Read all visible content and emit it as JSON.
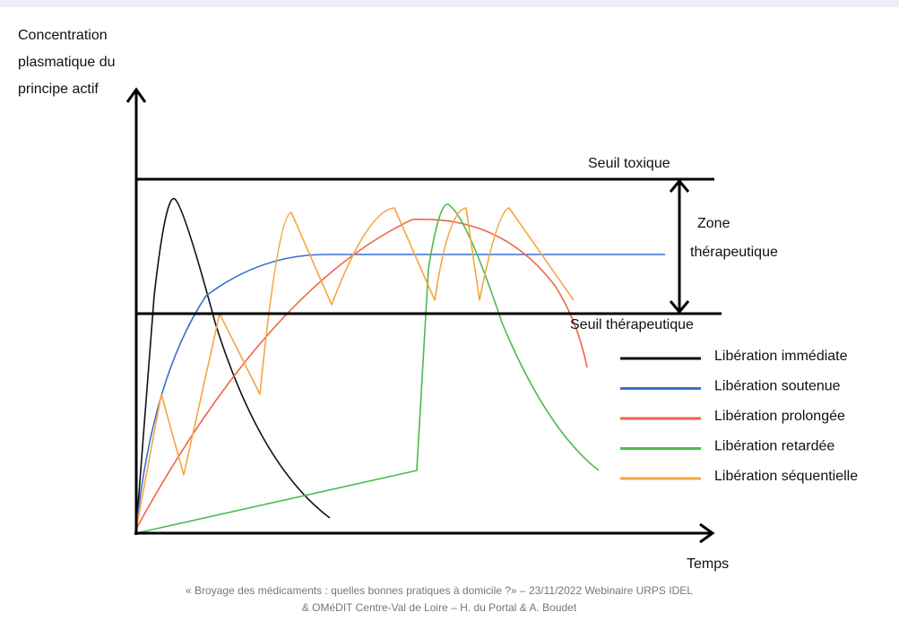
{
  "y_axis_label": [
    "Concentration",
    "plasmatique du",
    "principe actif"
  ],
  "x_axis_label": "Temps",
  "toxic_threshold": "Seuil toxique",
  "therapeutic_zone": [
    "Zone",
    "thérapeutique"
  ],
  "therapeutic_threshold": "Seuil thérapeutique",
  "legend": [
    {
      "name": "Libération immédiate",
      "color": "#111111"
    },
    {
      "name": "Libération soutenue",
      "color": "#3a6fd0"
    },
    {
      "name": "Libération prolongée",
      "color": "#f0644a"
    },
    {
      "name": "Libération retardée",
      "color": "#4cbb4c"
    },
    {
      "name": "Libération séquentielle",
      "color": "#f5a540"
    }
  ],
  "footer": [
    "« Broyage des médicaments : quelles bonnes pratiques à domicile ?» –  23/11/2022  Webinaire URPS IDEL",
    "& OMéDIT Centre-Val de Loire – H. du Portal  & A. Boudet"
  ]
}
